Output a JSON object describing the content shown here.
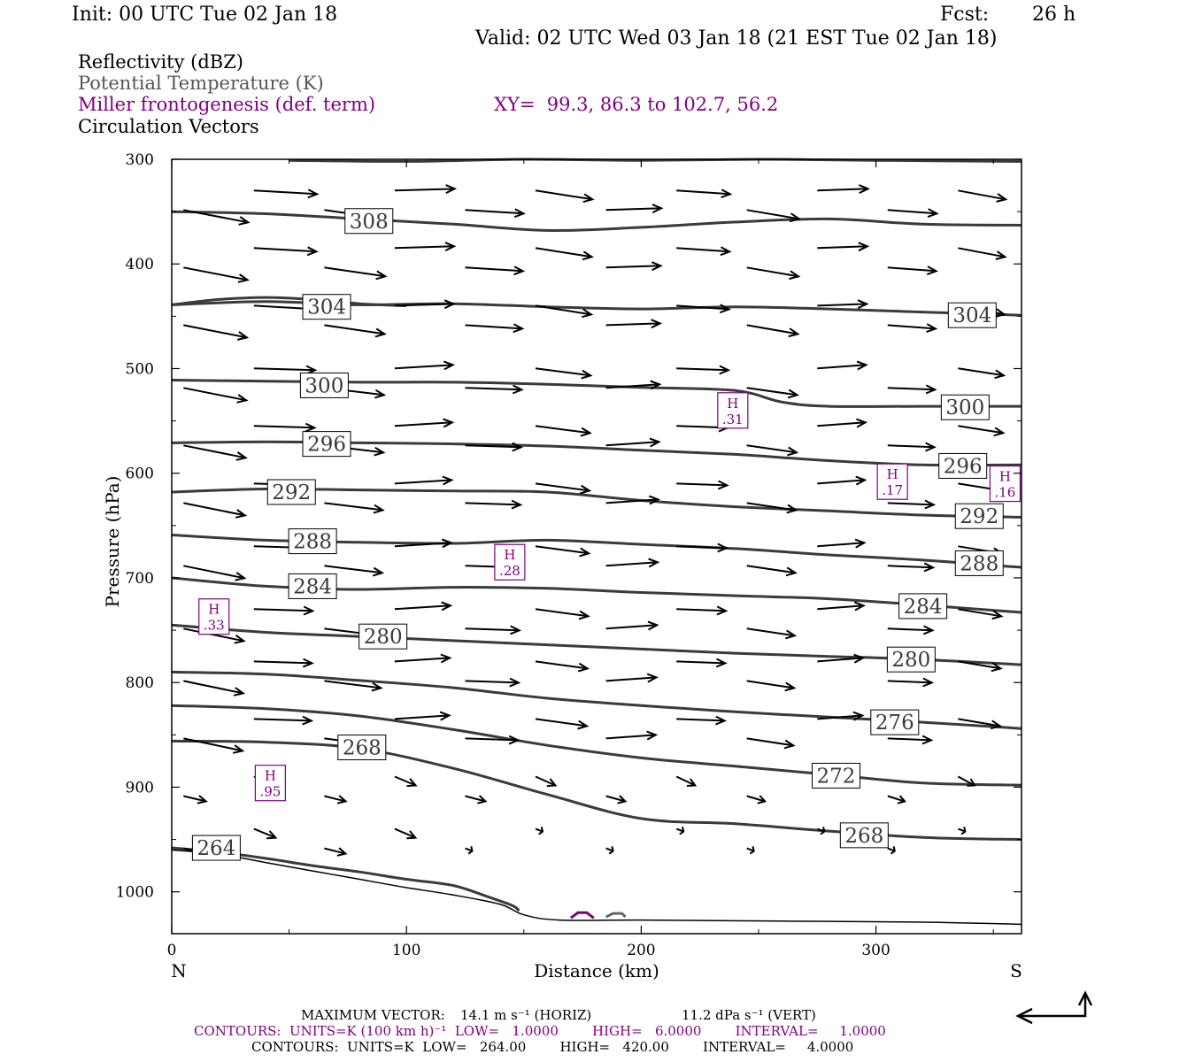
{
  "header": {
    "init": "Init: 00 UTC Tue 02 Jan 18",
    "fcst_label": "Fcst:",
    "fcst_value": "26 h",
    "valid": "Valid: 02 UTC Wed 03 Jan 18 (21 EST Tue 02 Jan 18)"
  },
  "legend": {
    "reflectivity": "Reflectivity (dBZ)",
    "theta": "Potential Temperature (K)",
    "frontogenesis": "Miller frontogenesis (def. term)",
    "xy": "XY=  99.3, 86.3 to 102.7, 56.2",
    "vectors": "Circulation Vectors"
  },
  "footer": {
    "max_vector_label": "MAXIMUM VECTOR:",
    "max_horiz": "14.1 m s⁻¹ (HORIZ)",
    "max_vert": "11.2 dPa s⁻¹ (VERT)",
    "contours_purple": "CONTOURS:  UNITS=K (100 km h)⁻¹  LOW=   1.0000        HIGH=   6.0000        INTERVAL=     1.0000",
    "contours_black": "CONTOURS:  UNITS=K  LOW=   264.00        HIGH=   420.00        INTERVAL=     4.0000"
  },
  "colors": {
    "theta": "#3a3a3a",
    "frontogenesis": "#800080",
    "vectors": "#000000"
  },
  "chart_data": {
    "type": "line",
    "xlabel": "Distance (km)",
    "ylabel": "Pressure (hPa)",
    "xlim": [
      0,
      362
    ],
    "ylim": [
      300,
      1040
    ],
    "y_inverted": true,
    "x_ticks": [
      0,
      100,
      200,
      300
    ],
    "y_ticks": [
      300,
      400,
      500,
      600,
      700,
      800,
      900,
      1000
    ],
    "x_end_labels": {
      "left": "N",
      "right": "S"
    },
    "series": [
      {
        "name": "308",
        "x": [
          0,
          40,
          80,
          120,
          160,
          200,
          240,
          280,
          320,
          362
        ],
        "y": [
          350,
          352,
          357,
          362,
          368,
          365,
          360,
          357,
          362,
          363
        ],
        "label_at": [
          84,
          359
        ]
      },
      {
        "name": "",
        "x": [
          50,
          100,
          150,
          200,
          250,
          300,
          362
        ],
        "y": [
          301,
          302,
          300,
          301,
          300,
          301,
          302
        ]
      },
      {
        "name": "304",
        "x": [
          0,
          40,
          80,
          120,
          160,
          200,
          240,
          280,
          320,
          362
        ],
        "y": [
          439,
          436,
          439,
          438,
          441,
          443,
          441,
          443,
          446,
          449
        ],
        "label_at": [
          341,
          449
        ]
      },
      {
        "name": "304",
        "x": [
          0,
          20,
          40,
          60,
          80,
          100
        ],
        "y": [
          439,
          434,
          432,
          434,
          438,
          440
        ],
        "label_at": [
          66,
          441
        ]
      },
      {
        "name": "300",
        "x": [
          0,
          40,
          80,
          120,
          160,
          200,
          240,
          260,
          280,
          320,
          362
        ],
        "y": [
          511,
          512,
          513,
          513,
          515,
          518,
          521,
          532,
          536,
          536,
          536
        ],
        "label_at": [
          65,
          516
        ]
      },
      {
        "name": "300",
        "x": [
          340
        ],
        "y": [
          536
        ],
        "label_at": [
          338,
          537
        ]
      },
      {
        "name": "296",
        "x": [
          0,
          40,
          80,
          120,
          160,
          200,
          240,
          280,
          320,
          362
        ],
        "y": [
          571,
          570,
          571,
          572,
          574,
          578,
          582,
          588,
          592,
          592
        ],
        "label_at": [
          66,
          572
        ]
      },
      {
        "name": "296",
        "x": [
          340
        ],
        "y": [
          592
        ],
        "label_at": [
          337,
          593
        ]
      },
      {
        "name": "292",
        "x": [
          0,
          40,
          80,
          120,
          160,
          200,
          240,
          280,
          320,
          362
        ],
        "y": [
          618,
          615,
          616,
          617,
          618,
          626,
          632,
          636,
          640,
          642
        ],
        "label_at": [
          51,
          618
        ]
      },
      {
        "name": "292",
        "x": [
          340
        ],
        "y": [
          642
        ],
        "label_at": [
          344,
          641
        ]
      },
      {
        "name": "288",
        "x": [
          0,
          40,
          80,
          120,
          160,
          200,
          240,
          280,
          320,
          362
        ],
        "y": [
          659,
          664,
          666,
          667,
          664,
          668,
          672,
          678,
          683,
          690
        ],
        "label_at": [
          60,
          665
        ]
      },
      {
        "name": "288",
        "x": [
          340
        ],
        "y": [
          688
        ],
        "label_at": [
          344,
          686
        ]
      },
      {
        "name": "284",
        "x": [
          0,
          40,
          80,
          120,
          160,
          200,
          240,
          280,
          320,
          362
        ],
        "y": [
          700,
          708,
          711,
          709,
          710,
          714,
          717,
          720,
          726,
          733
        ],
        "label_at": [
          60,
          708
        ]
      },
      {
        "name": "284",
        "x": [
          320
        ],
        "y": [
          727
        ],
        "label_at": [
          320,
          727
        ]
      },
      {
        "name": "280",
        "x": [
          0,
          40,
          80,
          120,
          160,
          200,
          240,
          280,
          320,
          362
        ],
        "y": [
          745,
          752,
          756,
          760,
          764,
          768,
          772,
          775,
          778,
          783
        ],
        "label_at": [
          90,
          756
        ]
      },
      {
        "name": "280",
        "x": [
          315
        ],
        "y": [
          778
        ],
        "label_at": [
          315,
          778
        ]
      },
      {
        "name": "",
        "x": [
          0,
          40,
          80,
          120,
          160,
          200,
          240,
          280,
          320,
          362
        ],
        "y": [
          790,
          792,
          798,
          805,
          815,
          822,
          828,
          833,
          838,
          844
        ]
      },
      {
        "name": "276",
        "x": [
          308
        ],
        "y": [
          838
        ],
        "label_at": [
          308,
          838
        ]
      },
      {
        "name": "",
        "x": [
          0,
          40,
          80,
          120,
          160,
          200,
          240,
          280,
          320,
          362
        ],
        "y": [
          822,
          825,
          832,
          845,
          860,
          872,
          880,
          888,
          896,
          898
        ]
      },
      {
        "name": "272",
        "x": [
          283
        ],
        "y": [
          889
        ],
        "label_at": [
          283,
          889
        ]
      },
      {
        "name": "268",
        "x": [
          0,
          40,
          80,
          120,
          160,
          200,
          240,
          280,
          320,
          362
        ],
        "y": [
          856,
          857,
          863,
          882,
          907,
          930,
          935,
          942,
          948,
          950
        ],
        "label_at": [
          81,
          862
        ]
      },
      {
        "name": "268",
        "x": [
          295
        ],
        "y": [
          946
        ],
        "label_at": [
          295,
          946
        ]
      },
      {
        "name": "264",
        "x": [
          0,
          20,
          40,
          60,
          80,
          100,
          120,
          135,
          145,
          148
        ],
        "y": [
          958,
          962,
          968,
          975,
          981,
          988,
          994,
          1005,
          1013,
          1018
        ],
        "label_at": [
          19,
          958
        ]
      }
    ],
    "frontogenesis_maxima": [
      {
        "label": "H",
        "value": ".31",
        "x": 239,
        "y": 540
      },
      {
        "label": "H",
        "value": ".17",
        "x": 307,
        "y": 608
      },
      {
        "label": "H",
        "value": ".16",
        "x": 355,
        "y": 610
      },
      {
        "label": "H",
        "value": ".28",
        "x": 144,
        "y": 685
      },
      {
        "label": "H",
        "value": ".33",
        "x": 18,
        "y": 737
      },
      {
        "label": "H",
        "value": ".95",
        "x": 42,
        "y": 896
      }
    ]
  }
}
